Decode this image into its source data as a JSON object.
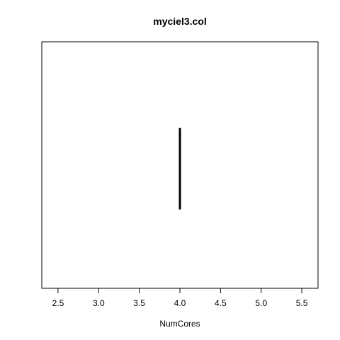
{
  "chart_data": {
    "type": "line",
    "title": "myciel3.col",
    "xlabel": "NumCores",
    "ylabel": "",
    "xlim": [
      2.3,
      5.7
    ],
    "x_ticks": [
      2.5,
      3.0,
      3.5,
      4.0,
      4.5,
      5.0,
      5.5
    ],
    "x_tick_labels": [
      "2.5",
      "3.0",
      "3.5",
      "4.0",
      "4.5",
      "5.0",
      "5.5"
    ],
    "y_axis_shown": false,
    "grid": false,
    "series": [
      {
        "color": "#000000",
        "segments": [
          {
            "x": 4.0,
            "y_start": 0.65,
            "y_end": 0.32
          }
        ]
      }
    ]
  }
}
